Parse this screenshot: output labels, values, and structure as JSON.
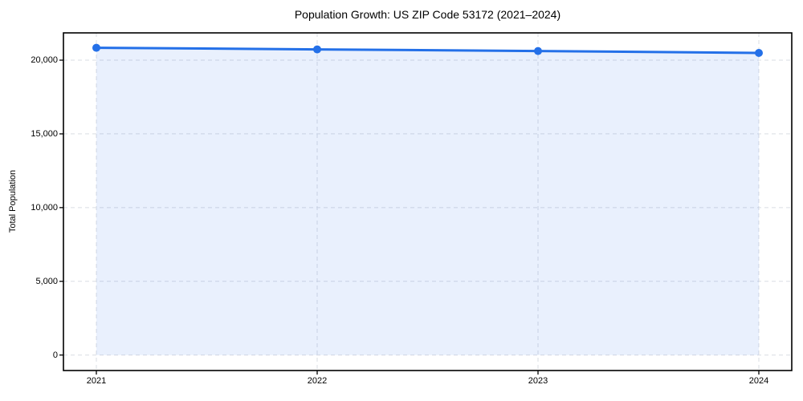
{
  "chart_data": {
    "type": "line",
    "title": "Population Growth: US ZIP Code 53172 (2021–2024)",
    "xlabel": "",
    "ylabel": "Total Population",
    "categories": [
      "2021",
      "2022",
      "2023",
      "2024"
    ],
    "series": [
      {
        "name": "Total Population",
        "values": [
          20840,
          20730,
          20620,
          20490
        ]
      }
    ],
    "ylim": [
      -1050,
      21850
    ],
    "yticks": [
      0,
      5000,
      10000,
      15000,
      20000
    ],
    "grid": true,
    "grid_style": "dashed",
    "area_fill": true,
    "marker": "circle",
    "legend": "none",
    "colors": {
      "line": "#2470e8",
      "marker": "#2470e8",
      "fill": "rgba(36,112,232,0.10)",
      "gridline": "#d9dde3",
      "spine": "#000000",
      "text": "#000000",
      "background": "#ffffff"
    }
  }
}
